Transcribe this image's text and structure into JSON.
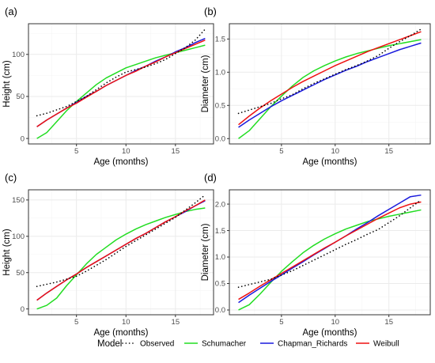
{
  "colors": {
    "Observed": "#000000",
    "Schumacher": "#22dd22",
    "Chapman_Richards": "#1a1add",
    "Weibull": "#ee1111",
    "grid_major": "#ebebeb",
    "grid_minor": "#f5f5f5",
    "panel_border": "#333333"
  },
  "legend": {
    "title": "Model",
    "position": "bottom",
    "items": [
      {
        "key": "Observed",
        "label": "Observed",
        "style": "dotted"
      },
      {
        "key": "Schumacher",
        "label": "Schumacher",
        "style": "solid"
      },
      {
        "key": "Chapman_Richards",
        "label": "Chapman_Richards",
        "style": "solid"
      },
      {
        "key": "Weibull",
        "label": "Weibull",
        "style": "solid"
      }
    ]
  },
  "chart_data": [
    {
      "type": "line",
      "panel_label": "(a)",
      "xlabel": "Age (months)",
      "ylabel": "Height (cm)",
      "xlim": [
        0.15,
        18.85
      ],
      "ylim": [
        -6.5,
        136.5
      ],
      "xticks": [
        5,
        10,
        15
      ],
      "yticks": [
        0,
        50,
        100
      ],
      "grid": true,
      "x": [
        1,
        2,
        3,
        4,
        5,
        6,
        7,
        8,
        9,
        10,
        11,
        12,
        13,
        14,
        15,
        16,
        17,
        18
      ],
      "series": [
        {
          "name": "Observed",
          "values": [
            27,
            30,
            34,
            38,
            44,
            50,
            58,
            66,
            73,
            79,
            82,
            85,
            89,
            94,
            101,
            108,
            117,
            130
          ]
        },
        {
          "name": "Schumacher",
          "values": [
            0,
            7,
            20,
            33,
            44,
            54,
            64,
            72,
            78,
            84,
            88,
            92,
            96,
            99,
            102,
            105,
            108,
            111
          ]
        },
        {
          "name": "Chapman_Richards",
          "values": [
            14,
            22,
            29,
            36,
            43,
            50,
            56,
            63,
            69,
            75,
            81,
            86,
            92,
            97,
            103,
            108,
            114,
            119
          ]
        },
        {
          "name": "Weibull",
          "values": [
            14,
            22,
            29,
            36,
            42,
            49,
            56,
            63,
            69,
            75,
            80,
            86,
            91,
            97,
            102,
            107,
            112,
            117
          ]
        }
      ]
    },
    {
      "type": "line",
      "panel_label": "(b)",
      "xlabel": "Age (months)",
      "ylabel": "Diameter (cm)",
      "xlim": [
        0.15,
        18.85
      ],
      "ylim": [
        -0.08,
        1.73
      ],
      "xticks": [
        5,
        10,
        15
      ],
      "yticks": [
        0.0,
        0.5,
        1.0,
        1.5
      ],
      "tick_labels_y": [
        "0.0",
        "0.5",
        "1.0",
        "1.5"
      ],
      "grid": true,
      "x": [
        1,
        2,
        3,
        4,
        5,
        6,
        7,
        8,
        9,
        10,
        11,
        12,
        13,
        14,
        15,
        16,
        17,
        18
      ],
      "series": [
        {
          "name": "Observed",
          "values": [
            0.38,
            0.43,
            0.48,
            0.53,
            0.6,
            0.66,
            0.75,
            0.83,
            0.9,
            0.97,
            1.04,
            1.1,
            1.17,
            1.25,
            1.36,
            1.46,
            1.55,
            1.65
          ]
        },
        {
          "name": "Schumacher",
          "values": [
            0.0,
            0.12,
            0.3,
            0.48,
            0.64,
            0.79,
            0.92,
            1.02,
            1.1,
            1.17,
            1.23,
            1.28,
            1.32,
            1.36,
            1.4,
            1.43,
            1.46,
            1.49
          ]
        },
        {
          "name": "Chapman_Richards",
          "values": [
            0.17,
            0.28,
            0.38,
            0.48,
            0.57,
            0.65,
            0.73,
            0.81,
            0.89,
            0.96,
            1.03,
            1.09,
            1.16,
            1.22,
            1.28,
            1.34,
            1.39,
            1.44
          ]
        },
        {
          "name": "Weibull",
          "values": [
            0.21,
            0.34,
            0.46,
            0.57,
            0.67,
            0.77,
            0.86,
            0.94,
            1.02,
            1.1,
            1.17,
            1.24,
            1.31,
            1.37,
            1.43,
            1.49,
            1.55,
            1.61
          ]
        }
      ]
    },
    {
      "type": "line",
      "panel_label": "(c)",
      "xlabel": "Age (months)",
      "ylabel": "Height (cm)",
      "xlim": [
        0.15,
        18.85
      ],
      "ylim": [
        -8,
        164
      ],
      "xticks": [
        5,
        10,
        15
      ],
      "yticks": [
        0,
        50,
        100,
        150
      ],
      "grid": true,
      "x": [
        1,
        2,
        3,
        4,
        5,
        6,
        7,
        8,
        9,
        10,
        11,
        12,
        13,
        14,
        15,
        16,
        17,
        18
      ],
      "series": [
        {
          "name": "Observed",
          "values": [
            31,
            34,
            37,
            41,
            45,
            52,
            60,
            68,
            77,
            86,
            94,
            102,
            110,
            118,
            126,
            136,
            146,
            157
          ]
        },
        {
          "name": "Schumacher",
          "values": [
            0,
            5,
            15,
            32,
            47,
            62,
            75,
            85,
            95,
            103,
            110,
            116,
            121,
            126,
            130,
            134,
            137,
            139
          ]
        },
        {
          "name": "Chapman_Richards",
          "values": [
            12,
            22,
            31,
            40,
            48,
            57,
            65,
            73,
            81,
            89,
            97,
            104,
            112,
            120,
            127,
            134,
            142,
            149
          ]
        },
        {
          "name": "Weibull",
          "values": [
            12,
            22,
            31,
            40,
            48,
            57,
            65,
            73,
            81,
            89,
            97,
            104,
            112,
            120,
            127,
            135,
            142,
            150
          ]
        }
      ]
    },
    {
      "type": "line",
      "panel_label": "(d)",
      "xlabel": "Age (months)",
      "ylabel": "Diameter (cm)",
      "xlim": [
        0.15,
        18.85
      ],
      "ylim": [
        -0.09,
        2.27
      ],
      "xticks": [
        5,
        10,
        15
      ],
      "yticks": [
        0.0,
        0.5,
        1.0,
        1.5,
        2.0
      ],
      "tick_labels_y": [
        "0.0",
        "0.5",
        "1.0",
        "1.5",
        "2.0"
      ],
      "grid": true,
      "x": [
        1,
        2,
        3,
        4,
        5,
        6,
        7,
        8,
        9,
        10,
        11,
        12,
        13,
        14,
        15,
        16,
        17,
        18
      ],
      "series": [
        {
          "name": "Observed",
          "values": [
            0.43,
            0.48,
            0.53,
            0.58,
            0.66,
            0.74,
            0.84,
            0.94,
            1.04,
            1.14,
            1.24,
            1.33,
            1.43,
            1.52,
            1.65,
            1.78,
            1.93,
            2.08
          ]
        },
        {
          "name": "Schumacher",
          "values": [
            0.0,
            0.1,
            0.3,
            0.52,
            0.73,
            0.91,
            1.08,
            1.22,
            1.34,
            1.44,
            1.53,
            1.6,
            1.67,
            1.72,
            1.77,
            1.81,
            1.85,
            1.89
          ]
        },
        {
          "name": "Chapman_Richards",
          "values": [
            0.14,
            0.28,
            0.41,
            0.54,
            0.66,
            0.79,
            0.91,
            1.04,
            1.16,
            1.28,
            1.4,
            1.53,
            1.65,
            1.78,
            1.9,
            2.02,
            2.14,
            2.17
          ]
        },
        {
          "name": "Weibull",
          "values": [
            0.2,
            0.32,
            0.45,
            0.57,
            0.69,
            0.81,
            0.93,
            1.05,
            1.17,
            1.28,
            1.4,
            1.51,
            1.62,
            1.73,
            1.83,
            1.93,
            2.0,
            2.04
          ]
        }
      ]
    }
  ]
}
